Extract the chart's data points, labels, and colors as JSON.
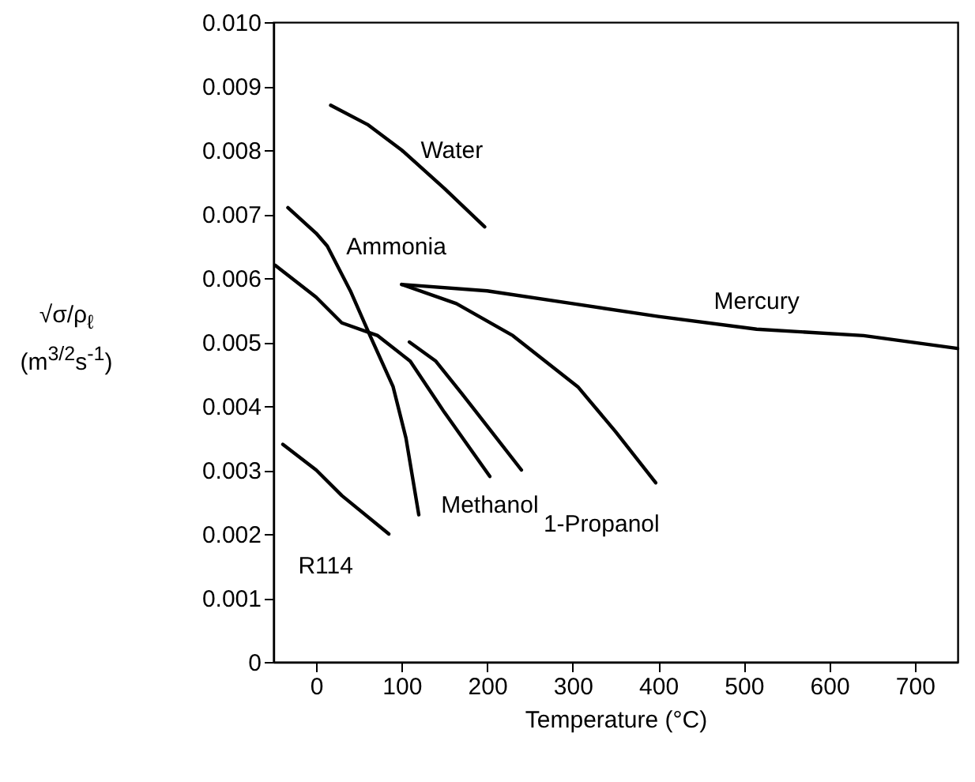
{
  "chart_data": {
    "type": "line",
    "xlabel": "Temperature (°C)",
    "ylabel": "√σ/ρ$_{ℓ}$ (m$^{3/2}$s$^{-1}$)",
    "xlim": [
      -50,
      750
    ],
    "xticks": [
      0,
      100,
      200,
      300,
      400,
      500,
      600,
      700
    ],
    "ylim": [
      0,
      0.01
    ],
    "yticks": [
      0,
      0.001,
      0.002,
      0.003,
      0.004,
      0.005,
      0.006,
      0.007,
      0.008,
      0.009,
      {
        "value": 0.01,
        "label": "0.010"
      }
    ],
    "series": [
      {
        "name": "Water",
        "color": "#000000",
        "x": [
          17,
          60,
          100,
          150,
          197
        ],
        "values": [
          0.0087,
          0.0084,
          0.008,
          0.0074,
          0.0068
        ]
      },
      {
        "name": "Ammonia",
        "color": "#000000",
        "x": [
          -33,
          0,
          13,
          40,
          63,
          90,
          105,
          120
        ],
        "values": [
          0.0071,
          0.0067,
          0.0065,
          0.0058,
          0.0051,
          0.0043,
          0.0035,
          0.0023
        ]
      },
      {
        "name": "Methanol",
        "color": "#000000",
        "x": [
          -48,
          0,
          30,
          72,
          110,
          150,
          203
        ],
        "values": [
          0.0062,
          0.0057,
          0.0053,
          0.0051,
          0.0047,
          0.0039,
          0.0029
        ]
      },
      {
        "name": "1-Propanol",
        "color": "#000000",
        "x": [
          109,
          140,
          170,
          205,
          240
        ],
        "values": [
          0.005,
          0.0047,
          0.0042,
          0.0036,
          0.003
        ]
      },
      {
        "name": "R114",
        "color": "#000000",
        "x": [
          -39,
          0,
          30,
          85
        ],
        "values": [
          0.0034,
          0.003,
          0.0026,
          0.002
        ]
      },
      {
        "name": "Mercury",
        "color": "#000000",
        "x": [
          100,
          200,
          300,
          400,
          515,
          640,
          750
        ],
        "values": [
          0.0059,
          0.0058,
          0.0056,
          0.0054,
          0.0052,
          0.0051,
          0.0049
        ]
      },
      {
        "color": "#000000",
        "x": [
          100,
          164,
          230,
          306,
          350,
          397
        ],
        "values": [
          0.0059,
          0.0056,
          0.0051,
          0.0043,
          0.0036,
          0.0028
        ]
      }
    ]
  }
}
